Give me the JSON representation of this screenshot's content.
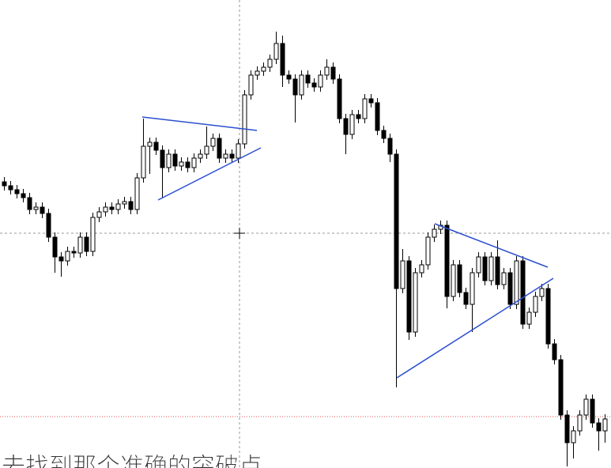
{
  "chart_data": {
    "type": "candlestick",
    "caption": "去找到那个准确的突破点",
    "ylim": [
      8,
      600
    ],
    "up_color": "#ffffff",
    "down_color": "#000000",
    "candles": [
      [
        370,
        376,
        359,
        365
      ],
      [
        365,
        371,
        354,
        360
      ],
      [
        360,
        366,
        349,
        355
      ],
      [
        355,
        361,
        344,
        350
      ],
      [
        350,
        356,
        329,
        335
      ],
      [
        335,
        344,
        329,
        338
      ],
      [
        338,
        344,
        324,
        330
      ],
      [
        330,
        336,
        294,
        300
      ],
      [
        300,
        306,
        255,
        275
      ],
      [
        275,
        281,
        250,
        270
      ],
      [
        270,
        288,
        264,
        282
      ],
      [
        282,
        288,
        274,
        280
      ],
      [
        280,
        306,
        274,
        300
      ],
      [
        300,
        306,
        276,
        282
      ],
      [
        282,
        331,
        276,
        325
      ],
      [
        325,
        338,
        319,
        332
      ],
      [
        332,
        344,
        326,
        338
      ],
      [
        338,
        344,
        329,
        335
      ],
      [
        335,
        348,
        329,
        342
      ],
      [
        342,
        351,
        336,
        345
      ],
      [
        345,
        351,
        329,
        335
      ],
      [
        335,
        381,
        329,
        375
      ],
      [
        375,
        450,
        369,
        415
      ],
      [
        415,
        426,
        380,
        420
      ],
      [
        420,
        426,
        404,
        410
      ],
      [
        410,
        416,
        350,
        388
      ],
      [
        388,
        411,
        382,
        405
      ],
      [
        405,
        411,
        384,
        390
      ],
      [
        390,
        401,
        384,
        395
      ],
      [
        395,
        401,
        382,
        388
      ],
      [
        388,
        406,
        382,
        400
      ],
      [
        400,
        411,
        394,
        405
      ],
      [
        405,
        440,
        399,
        415
      ],
      [
        415,
        431,
        409,
        425
      ],
      [
        425,
        431,
        394,
        400
      ],
      [
        400,
        411,
        394,
        405
      ],
      [
        405,
        411,
        394,
        400
      ],
      [
        400,
        424,
        394,
        418
      ],
      [
        418,
        486,
        412,
        480
      ],
      [
        480,
        511,
        474,
        505
      ],
      [
        505,
        516,
        499,
        510
      ],
      [
        510,
        521,
        504,
        515
      ],
      [
        515,
        531,
        509,
        525
      ],
      [
        525,
        560,
        519,
        545
      ],
      [
        545,
        555,
        490,
        505
      ],
      [
        505,
        511,
        494,
        500
      ],
      [
        500,
        506,
        445,
        480
      ],
      [
        480,
        511,
        474,
        505
      ],
      [
        505,
        511,
        489,
        495
      ],
      [
        495,
        501,
        484,
        490
      ],
      [
        490,
        511,
        484,
        505
      ],
      [
        505,
        525,
        499,
        515
      ],
      [
        515,
        521,
        494,
        500
      ],
      [
        500,
        506,
        444,
        450
      ],
      [
        450,
        456,
        405,
        430
      ],
      [
        430,
        461,
        424,
        455
      ],
      [
        455,
        461,
        444,
        450
      ],
      [
        450,
        481,
        444,
        475
      ],
      [
        475,
        481,
        464,
        470
      ],
      [
        470,
        476,
        429,
        435
      ],
      [
        435,
        441,
        419,
        425
      ],
      [
        425,
        431,
        395,
        405
      ],
      [
        405,
        411,
        110,
        235
      ],
      [
        235,
        285,
        229,
        270
      ],
      [
        270,
        276,
        170,
        180
      ],
      [
        180,
        261,
        174,
        255
      ],
      [
        255,
        271,
        249,
        265
      ],
      [
        265,
        306,
        259,
        300
      ],
      [
        300,
        316,
        294,
        310
      ],
      [
        310,
        321,
        304,
        315
      ],
      [
        315,
        321,
        210,
        225
      ],
      [
        225,
        271,
        219,
        265
      ],
      [
        265,
        271,
        224,
        230
      ],
      [
        230,
        236,
        209,
        215
      ],
      [
        215,
        261,
        180,
        255
      ],
      [
        255,
        281,
        249,
        275
      ],
      [
        275,
        281,
        239,
        245
      ],
      [
        245,
        281,
        239,
        275
      ],
      [
        275,
        296,
        234,
        240
      ],
      [
        240,
        261,
        234,
        255
      ],
      [
        255,
        261,
        209,
        215
      ],
      [
        215,
        276,
        209,
        270
      ],
      [
        270,
        276,
        184,
        190
      ],
      [
        190,
        211,
        184,
        205
      ],
      [
        205,
        231,
        199,
        225
      ],
      [
        225,
        241,
        219,
        235
      ],
      [
        235,
        241,
        159,
        165
      ],
      [
        165,
        171,
        139,
        145
      ],
      [
        145,
        151,
        69,
        75
      ],
      [
        75,
        81,
        10,
        40
      ],
      [
        40,
        61,
        20,
        55
      ],
      [
        55,
        81,
        49,
        75
      ],
      [
        75,
        101,
        69,
        95
      ],
      [
        95,
        101,
        59,
        65
      ],
      [
        65,
        71,
        30,
        55
      ],
      [
        55,
        76,
        40,
        70
      ]
    ]
  }
}
